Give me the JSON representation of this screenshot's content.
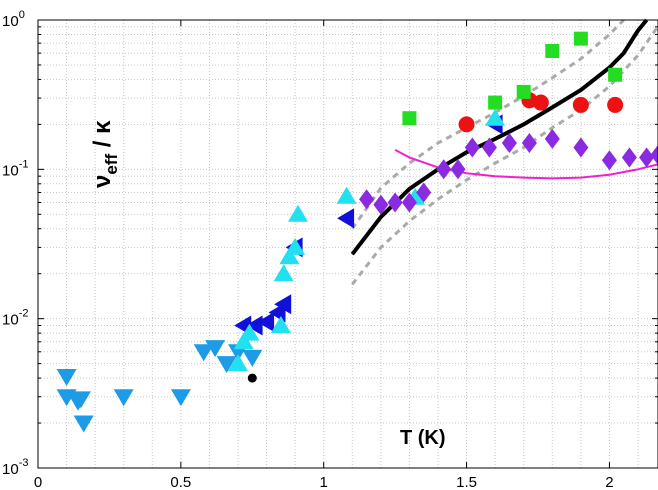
{
  "chart_data": {
    "type": "scatter",
    "title": "",
    "xlabel": "T  (K)",
    "ylabel": {
      "main": "ν",
      "sub": "eff",
      "tail": " / κ"
    },
    "xlim": [
      0,
      2.17
    ],
    "ylim": [
      0.001,
      1
    ],
    "yscale": "log",
    "grid": true,
    "x_ticks": [
      {
        "value": 0,
        "label": "0"
      },
      {
        "value": 0.5,
        "label": "0.5"
      },
      {
        "value": 1,
        "label": "1"
      },
      {
        "value": 1.5,
        "label": "1.5"
      },
      {
        "value": 2,
        "label": "2"
      }
    ],
    "y_ticks": [
      {
        "value": 0.001,
        "base": "10",
        "exp": "-3"
      },
      {
        "value": 0.01,
        "base": "10",
        "exp": "-2"
      },
      {
        "value": 0.1,
        "base": "10",
        "exp": "-1"
      },
      {
        "value": 1,
        "base": "10",
        "exp": "0"
      }
    ],
    "series": [
      {
        "marker": "triangle-down",
        "color": "#1E9BE6",
        "points": [
          [
            0.1,
            0.0041
          ],
          [
            0.1,
            0.003
          ],
          [
            0.14,
            0.0028
          ],
          [
            0.15,
            0.0029
          ],
          [
            0.16,
            0.002
          ],
          [
            0.3,
            0.003
          ],
          [
            0.5,
            0.003
          ],
          [
            0.58,
            0.006
          ],
          [
            0.62,
            0.0064
          ],
          [
            0.66,
            0.005
          ],
          [
            0.7,
            0.006
          ],
          [
            0.75,
            0.0055
          ]
        ]
      },
      {
        "marker": "triangle-left",
        "color": "#1010D8",
        "points": [
          [
            0.72,
            0.009
          ],
          [
            0.76,
            0.009
          ],
          [
            0.8,
            0.0095
          ],
          [
            0.84,
            0.011
          ],
          [
            0.86,
            0.0125
          ],
          [
            0.9,
            0.03
          ],
          [
            1.08,
            0.047
          ],
          [
            1.6,
            0.2
          ]
        ]
      },
      {
        "marker": "triangle-up",
        "color": "#22E0F0",
        "points": [
          [
            0.7,
            0.005
          ],
          [
            0.72,
            0.007
          ],
          [
            0.74,
            0.008
          ],
          [
            0.85,
            0.009
          ],
          [
            0.86,
            0.02
          ],
          [
            0.88,
            0.026
          ],
          [
            0.9,
            0.03
          ],
          [
            0.91,
            0.05
          ],
          [
            1.08,
            0.066
          ],
          [
            1.32,
            0.065
          ],
          [
            1.6,
            0.22
          ]
        ]
      },
      {
        "marker": "diamond",
        "color": "#8A2BE2",
        "points": [
          [
            1.15,
            0.063
          ],
          [
            1.2,
            0.058
          ],
          [
            1.25,
            0.06
          ],
          [
            1.3,
            0.06
          ],
          [
            1.35,
            0.07
          ],
          [
            1.42,
            0.1
          ],
          [
            1.47,
            0.1
          ],
          [
            1.52,
            0.14
          ],
          [
            1.58,
            0.14
          ],
          [
            1.65,
            0.15
          ],
          [
            1.72,
            0.15
          ],
          [
            1.8,
            0.16
          ],
          [
            1.9,
            0.14
          ],
          [
            2.0,
            0.115
          ],
          [
            2.07,
            0.12
          ],
          [
            2.13,
            0.12
          ],
          [
            2.17,
            0.125
          ]
        ]
      },
      {
        "marker": "circle",
        "color": "#EE1111",
        "points": [
          [
            1.5,
            0.2
          ],
          [
            1.72,
            0.29
          ],
          [
            1.76,
            0.28
          ],
          [
            1.9,
            0.27
          ],
          [
            2.02,
            0.27
          ]
        ]
      },
      {
        "marker": "square",
        "color": "#22DD22",
        "points": [
          [
            1.3,
            0.22
          ],
          [
            1.6,
            0.28
          ],
          [
            1.7,
            0.33
          ],
          [
            1.8,
            0.62
          ],
          [
            1.9,
            0.75
          ],
          [
            2.02,
            0.43
          ]
        ]
      },
      {
        "marker": "dot",
        "color": "#000000",
        "points": [
          [
            0.75,
            0.004
          ]
        ]
      }
    ],
    "lines": [
      {
        "style": "solid-thick",
        "color": "#000000",
        "points": [
          [
            1.1,
            0.027
          ],
          [
            1.2,
            0.048
          ],
          [
            1.3,
            0.074
          ],
          [
            1.4,
            0.1
          ],
          [
            1.5,
            0.13
          ],
          [
            1.6,
            0.16
          ],
          [
            1.7,
            0.2
          ],
          [
            1.8,
            0.26
          ],
          [
            1.9,
            0.34
          ],
          [
            2.0,
            0.48
          ],
          [
            2.05,
            0.6
          ],
          [
            2.1,
            0.85
          ],
          [
            2.13,
            1.0
          ]
        ]
      },
      {
        "style": "dashed",
        "color": "#AAAAAA",
        "points": [
          [
            1.1,
            0.04
          ],
          [
            1.2,
            0.075
          ],
          [
            1.3,
            0.11
          ],
          [
            1.4,
            0.15
          ],
          [
            1.5,
            0.19
          ],
          [
            1.6,
            0.24
          ],
          [
            1.7,
            0.31
          ],
          [
            1.8,
            0.41
          ],
          [
            1.9,
            0.55
          ],
          [
            2.0,
            0.8
          ],
          [
            2.05,
            1.0
          ]
        ]
      },
      {
        "style": "dashed",
        "color": "#AAAAAA",
        "points": [
          [
            1.1,
            0.017
          ],
          [
            1.2,
            0.03
          ],
          [
            1.3,
            0.045
          ],
          [
            1.4,
            0.063
          ],
          [
            1.5,
            0.085
          ],
          [
            1.6,
            0.11
          ],
          [
            1.7,
            0.14
          ],
          [
            1.8,
            0.19
          ],
          [
            1.9,
            0.25
          ],
          [
            2.0,
            0.36
          ],
          [
            2.1,
            0.58
          ],
          [
            2.16,
            0.85
          ],
          [
            2.17,
            0.9
          ]
        ]
      },
      {
        "style": "solid-thin",
        "color": "#EE22CC",
        "points": [
          [
            1.25,
            0.135
          ],
          [
            1.3,
            0.12
          ],
          [
            1.4,
            0.103
          ],
          [
            1.5,
            0.094
          ],
          [
            1.6,
            0.09
          ],
          [
            1.7,
            0.088
          ],
          [
            1.8,
            0.087
          ],
          [
            1.9,
            0.088
          ],
          [
            2.0,
            0.092
          ],
          [
            2.1,
            0.1
          ],
          [
            2.17,
            0.108
          ]
        ]
      }
    ]
  }
}
